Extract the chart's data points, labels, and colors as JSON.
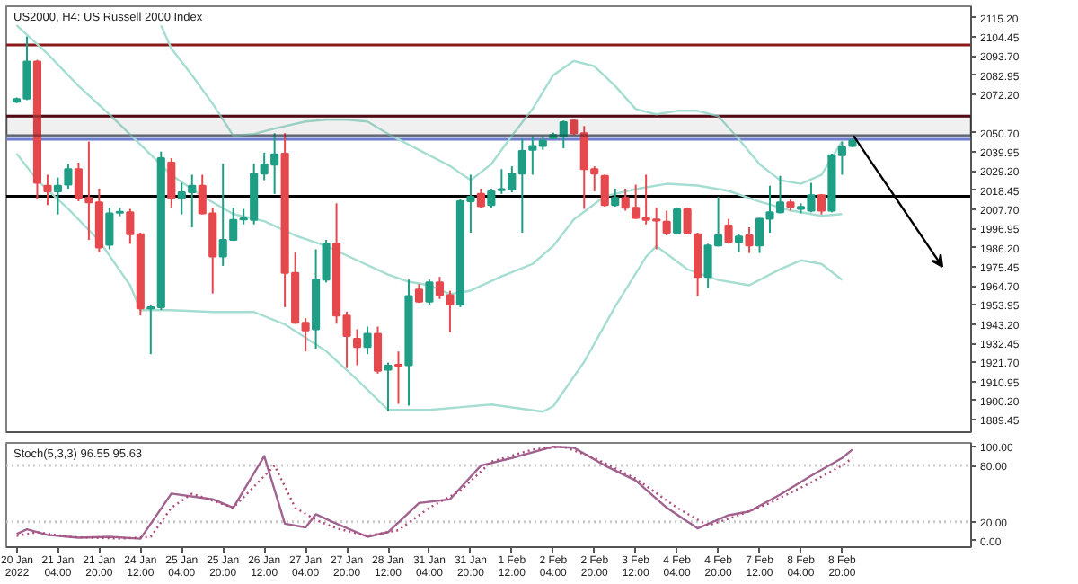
{
  "chart_data": [
    {
      "type": "candlestick",
      "title": "US2000, H4: US Russell 2000 Index",
      "categories": [
        null,
        null,
        null,
        null,
        null,
        null,
        null,
        null,
        null,
        null,
        null,
        null,
        null,
        null,
        null,
        null,
        null,
        null,
        null,
        null,
        null,
        null,
        null,
        null,
        null,
        null,
        null,
        null,
        null,
        null,
        null,
        null,
        null,
        null,
        null,
        null,
        null,
        null,
        null,
        null,
        null,
        null,
        null,
        null,
        null,
        null,
        null,
        null,
        null,
        null,
        null,
        null,
        null,
        null,
        null,
        null,
        null,
        null,
        null,
        null,
        null,
        null,
        null,
        null,
        null,
        null,
        null,
        null,
        null,
        null,
        null,
        null,
        null,
        null,
        null,
        null,
        null,
        null,
        null,
        null,
        null,
        null,
        null,
        null,
        null,
        null,
        null,
        null,
        null,
        null,
        null,
        null,
        null
      ],
      "ohlc": [
        [
          2068.1,
          2070.5,
          2067.4,
          2069.6
        ],
        [
          2069.9,
          2104.7,
          2069.0,
          2090.7
        ],
        [
          2090.7,
          2091.6,
          2013.2,
          2022.5
        ],
        [
          2020.9,
          2027.1,
          2010.0,
          2017.8
        ],
        [
          2017.8,
          2025.5,
          2004.8,
          2020.9
        ],
        [
          2021.5,
          2033.3,
          2019.3,
          2030.2
        ],
        [
          2030.2,
          2033.9,
          2012.2,
          2014.1
        ],
        [
          2014.1,
          2045.7,
          1990.5,
          2011.6
        ],
        [
          2011.6,
          2019.3,
          1983.7,
          1986.2
        ],
        [
          1987.7,
          2008.5,
          1985.2,
          2005.4
        ],
        [
          2005.7,
          2008.5,
          2003.8,
          2006.3
        ],
        [
          2006.0,
          2007.9,
          1988.3,
          1993.6
        ],
        [
          1993.6,
          1994.5,
          1948.0,
          1952.0
        ],
        [
          1952.0,
          1954.2,
          1926.3,
          1952.7
        ],
        [
          1952.7,
          2040.1,
          1951.1,
          2036.4
        ],
        [
          2033.9,
          2036.4,
          2008.5,
          2014.1
        ],
        [
          2014.1,
          2022.5,
          2004.8,
          2017.2
        ],
        [
          2017.2,
          2027.1,
          1997.6,
          2020.9
        ],
        [
          2020.9,
          2027.1,
          2004.8,
          2005.4
        ],
        [
          2005.4,
          2008.5,
          1960.4,
          1981.2
        ],
        [
          1981.2,
          2033.3,
          1975.9,
          1990.5
        ],
        [
          1990.5,
          2008.5,
          1989.9,
          2001.7
        ],
        [
          2002.0,
          2007.9,
          1999.2,
          2002.6
        ],
        [
          2001.7,
          2033.3,
          1999.2,
          2027.7
        ],
        [
          2027.7,
          2039.5,
          2024.0,
          2032.7
        ],
        [
          2032.7,
          2050.4,
          2016.3,
          2038.6
        ],
        [
          2038.9,
          2050.4,
          1952.7,
          1971.9
        ],
        [
          1971.9,
          1983.7,
          1943.4,
          1944.0
        ],
        [
          1944.0,
          1946.5,
          1927.8,
          1939.6
        ],
        [
          1940.3,
          1985.2,
          1929.4,
          1968.2
        ],
        [
          1968.2,
          1990.5,
          1966.6,
          1988.3
        ],
        [
          1988.3,
          2011.0,
          1943.4,
          1948.0
        ],
        [
          1948.0,
          1950.2,
          1918.5,
          1936.5
        ],
        [
          1935.0,
          1940.3,
          1920.1,
          1930.3
        ],
        [
          1930.3,
          1941.8,
          1926.3,
          1937.8
        ],
        [
          1937.8,
          1941.8,
          1915.4,
          1917.0
        ],
        [
          1917.6,
          1921.6,
          1894.3,
          1919.8
        ],
        [
          1920.4,
          1927.8,
          1898.4,
          1919.8
        ],
        [
          1920.1,
          1968.2,
          1897.4,
          1958.9
        ],
        [
          1962.6,
          1965.7,
          1955.1,
          1955.8
        ],
        [
          1955.8,
          1968.2,
          1954.2,
          1966.6
        ],
        [
          1966.6,
          1969.7,
          1957.3,
          1959.5
        ],
        [
          1959.5,
          1961.9,
          1938.7,
          1954.2
        ],
        [
          1954.2,
          2013.2,
          1952.7,
          2012.2
        ],
        [
          2012.2,
          2027.1,
          1994.5,
          2014.7
        ],
        [
          2016.3,
          2019.3,
          2008.5,
          2009.4
        ],
        [
          2010.0,
          2019.3,
          2008.5,
          2017.8
        ],
        [
          2018.4,
          2030.2,
          2016.3,
          2019.0
        ],
        [
          2018.7,
          2031.8,
          2017.2,
          2027.7
        ],
        [
          2027.7,
          2047.3,
          1994.5,
          2040.4
        ],
        [
          2041.1,
          2048.8,
          2027.1,
          2043.2
        ],
        [
          2043.2,
          2048.8,
          2041.1,
          2046.3
        ],
        [
          2047.6,
          2050.7,
          2047.0,
          2049.4
        ],
        [
          2048.8,
          2057.5,
          2042.0,
          2056.6
        ],
        [
          2057.5,
          2058.1,
          2049.4,
          2050.4
        ],
        [
          2050.4,
          2054.4,
          2007.9,
          2030.2
        ],
        [
          2030.2,
          2031.8,
          2017.8,
          2027.7
        ],
        [
          2026.5,
          2027.1,
          2009.1,
          2010.0
        ],
        [
          2010.0,
          2019.3,
          2009.1,
          2014.1
        ],
        [
          2014.1,
          2019.3,
          2006.9,
          2008.5
        ],
        [
          2008.5,
          2021.5,
          2002.3,
          2002.9
        ],
        [
          2002.9,
          2027.1,
          1999.2,
          2001.7
        ],
        [
          2002.0,
          2008.5,
          1985.2,
          2001.4
        ],
        [
          2000.7,
          2006.9,
          1993.0,
          1994.5
        ],
        [
          1994.5,
          2008.5,
          1993.6,
          2007.6
        ],
        [
          2007.6,
          2008.5,
          1993.6,
          1994.5
        ],
        [
          1993.6,
          1994.5,
          1958.9,
          1969.7
        ],
        [
          1969.7,
          1988.3,
          1963.5,
          1987.4
        ],
        [
          1987.4,
          2014.7,
          1986.8,
          1993.0
        ],
        [
          1998.6,
          2002.3,
          1988.3,
          1989.3
        ],
        [
          1989.3,
          1993.6,
          1983.7,
          1992.4
        ],
        [
          1993.0,
          1997.6,
          1983.1,
          1987.4
        ],
        [
          1987.4,
          2002.9,
          1983.1,
          2002.3
        ],
        [
          2002.3,
          2020.9,
          1994.5,
          2006.0
        ],
        [
          2006.0,
          2026.5,
          2005.4,
          2011.6
        ],
        [
          2011.6,
          2013.2,
          2006.9,
          2009.1
        ],
        [
          2007.9,
          2011.0,
          2005.4,
          2009.1
        ],
        [
          2006.9,
          2022.5,
          2006.0,
          2015.6
        ],
        [
          2015.6,
          2016.3,
          2004.8,
          2006.9
        ],
        [
          2006.9,
          2038.9,
          2006.0,
          2038.0
        ],
        [
          2038.0,
          2045.7,
          2027.1,
          2042.6
        ],
        [
          2043.2,
          2047.3,
          2042.6,
          2046.3
        ],
        null,
        null,
        null,
        null,
        null,
        null,
        null,
        null,
        null,
        null,
        null
      ],
      "colors": [
        "#1f9e86",
        "#1f9e86",
        "#e5484d",
        "#e5484d",
        "#1f9e86",
        "#1f9e86",
        "#e5484d",
        "#e5484d",
        "#e5484d",
        "#1f9e86",
        "#1f9e86",
        "#e5484d",
        "#e5484d",
        "#1f9e86",
        "#1f9e86",
        "#e5484d",
        "#1f9e86",
        "#1f9e86",
        "#e5484d",
        "#e5484d",
        "#1f9e86",
        "#1f9e86",
        "#1f9e86",
        "#1f9e86",
        "#1f9e86",
        "#1f9e86",
        "#e5484d",
        "#e5484d",
        "#e5484d",
        "#1f9e86",
        "#1f9e86",
        "#e5484d",
        "#e5484d",
        "#e5484d",
        "#1f9e86",
        "#e5484d",
        "#1f9e86",
        "#e5484d",
        "#1f9e86",
        "#e5484d",
        "#1f9e86",
        "#e5484d",
        "#e5484d",
        "#1f9e86",
        "#1f9e86",
        "#e5484d",
        "#1f9e86",
        "#1f9e86",
        "#1f9e86",
        "#1f9e86",
        "#1f9e86",
        "#1f9e86",
        "#1f9e86",
        "#1f9e86",
        "#e5484d",
        "#e5484d",
        "#e5484d",
        "#e5484d",
        "#1f9e86",
        "#e5484d",
        "#e5484d",
        "#e5484d",
        "#e5484d",
        "#e5484d",
        "#1f9e86",
        "#e5484d",
        "#e5484d",
        "#1f9e86",
        "#1f9e86",
        "#e5484d",
        "#1f9e86",
        "#e5484d",
        "#1f9e86",
        "#1f9e86",
        "#1f9e86",
        "#e5484d",
        "#1f9e86",
        "#1f9e86",
        "#e5484d",
        "#1f9e86",
        "#1f9e86",
        "#1f9e86",
        null,
        null,
        null,
        null,
        null,
        null,
        null,
        null,
        null,
        null,
        null
      ],
      "series": [
        {
          "type": "line",
          "color": "#a6ddd2",
          "values": [
            null,
            null,
            null,
            null,
            null,
            null,
            null,
            null,
            null,
            null,
            null,
            null,
            null,
            null,
            2111,
            2098,
            null,
            2083,
            null,
            2067,
            null,
            2049,
            null,
            2050,
            null,
            2053,
            null,
            null,
            2057,
            null,
            2058,
            null,
            2058,
            null,
            2057,
            null,
            2050,
            null,
            2044,
            null,
            2038,
            null,
            2032,
            null,
            2024,
            null,
            2033,
            null,
            2049,
            null,
            2064,
            null,
            2083,
            null,
            2091,
            null,
            2088,
            null,
            2077,
            null,
            2064,
            null,
            2061,
            null,
            2063,
            null,
            2063,
            null,
            2060,
            null,
            2047,
            null,
            2033,
            null,
            2024,
            null,
            2022,
            null,
            2027,
            null,
            2046,
            null,
            null,
            null,
            null,
            null,
            null,
            null,
            null,
            null,
            null,
            null,
            null
          ]
        },
        {
          "type": "line",
          "color": "#a6ddd2",
          "values": [
            2111,
            null,
            null,
            2095,
            null,
            null,
            2077,
            null,
            null,
            2061,
            null,
            null,
            2044,
            null,
            null,
            2027,
            null,
            null,
            2015,
            null,
            null,
            2005,
            null,
            null,
            2001,
            null,
            null,
            1993,
            null,
            null,
            1987,
            null,
            null,
            1979,
            null,
            null,
            1971,
            null,
            1967,
            null,
            1965,
            null,
            1960,
            null,
            1962,
            null,
            null,
            1970,
            null,
            null,
            1977,
            null,
            1987,
            null,
            2002,
            null,
            null,
            2015,
            null,
            null,
            2019,
            null,
            null,
            2022,
            null,
            null,
            2021,
            null,
            null,
            2018,
            null,
            null,
            2012,
            null,
            null,
            2007,
            null,
            null,
            2004,
            null,
            2005,
            null,
            null,
            null,
            null,
            null,
            null,
            null,
            null,
            null,
            null,
            null,
            null
          ]
        },
        {
          "type": "line",
          "color": "#a6ddd2",
          "values": [
            2039,
            null,
            2024,
            null,
            null,
            2008,
            null,
            null,
            1990,
            null,
            null,
            1965,
            1951,
            null,
            null,
            1951,
            null,
            null,
            null,
            1950,
            null,
            null,
            null,
            1950,
            null,
            null,
            1943,
            null,
            null,
            null,
            1928,
            null,
            null,
            1912,
            null,
            null,
            1895,
            null,
            null,
            null,
            1895,
            null,
            null,
            null,
            null,
            null,
            1898,
            null,
            null,
            null,
            null,
            1894,
            1897,
            null,
            null,
            1922,
            null,
            null,
            1953,
            null,
            null,
            1981,
            1987,
            null,
            null,
            1974,
            null,
            null,
            1968,
            null,
            null,
            1965,
            null,
            null,
            1974,
            null,
            1979,
            null,
            1977,
            null,
            1968,
            null,
            null,
            null,
            null,
            null,
            null,
            null,
            null,
            null,
            null,
            null,
            null
          ]
        }
      ],
      "ref_lines": [
        {
          "axis": "y",
          "value": 2100,
          "color": "#8b1a1a"
        },
        {
          "axis": "y",
          "value": 2060,
          "color": "#7a0f1f"
        },
        {
          "axis": "y",
          "value": 2049,
          "color": "#9aa0b0"
        },
        {
          "axis": "y",
          "value": 2047,
          "color": "#6f7fd0"
        },
        {
          "axis": "y",
          "value": 2015,
          "color": "#000000"
        }
      ],
      "bands": [
        {
          "axis": "y",
          "from": 2049,
          "to": 2060,
          "color": "#000000"
        }
      ],
      "ylim": [
        1882.5,
        2121.7
      ],
      "yticks": [
        {
          "value": 2115.2,
          "label": "2115.20"
        },
        {
          "value": 2104.45,
          "label": "2104.45"
        },
        {
          "value": 2093.7,
          "label": "2093.70"
        },
        {
          "value": 2082.95,
          "label": "2082.95"
        },
        {
          "value": 2072.2,
          "label": "2072.20"
        },
        {
          "value": 2050.7,
          "label": "2050.70"
        },
        {
          "value": 2039.95,
          "label": "2039.95"
        },
        {
          "value": 2029.2,
          "label": "2029.20"
        },
        {
          "value": 2018.45,
          "label": "2018.45"
        },
        {
          "value": 2007.7,
          "label": "2007.70"
        },
        {
          "value": 1996.95,
          "label": "1996.95"
        },
        {
          "value": 1986.2,
          "label": "1986.20"
        },
        {
          "value": 1975.45,
          "label": "1975.45"
        },
        {
          "value": 1964.7,
          "label": "1964.70"
        },
        {
          "value": 1953.95,
          "label": "1953.95"
        },
        {
          "value": 1943.2,
          "label": "1943.20"
        },
        {
          "value": 1932.45,
          "label": "1932.45"
        },
        {
          "value": 1921.7,
          "label": "1921.70"
        },
        {
          "value": 1910.95,
          "label": "1910.95"
        },
        {
          "value": 1900.2,
          "label": "1900.20"
        },
        {
          "value": 1889.45,
          "label": "1889.45"
        }
      ]
    },
    {
      "type": "line",
      "title": "Stoch(5,3,3) 96.55 95.63",
      "categories": [
        "20 Jan 2022",
        null,
        null,
        null,
        "21 Jan 04:00",
        null,
        null,
        null,
        "21 Jan 20:00",
        null,
        null,
        null,
        "24 Jan 12:00",
        null,
        null,
        null,
        "25 Jan 04:00",
        null,
        null,
        null,
        "25 Jan 20:00",
        null,
        null,
        null,
        "26 Jan 12:00",
        null,
        null,
        null,
        "27 Jan 04:00",
        null,
        null,
        null,
        "27 Jan 20:00",
        null,
        null,
        null,
        "28 Jan 12:00",
        null,
        null,
        null,
        "31 Jan 04:00",
        null,
        null,
        null,
        "31 Jan 20:00",
        null,
        null,
        null,
        "1 Feb 12:00",
        null,
        null,
        null,
        "2 Feb 04:00",
        null,
        null,
        null,
        "2 Feb 20:00",
        null,
        null,
        null,
        "3 Feb 12:00",
        null,
        null,
        null,
        "4 Feb 04:00",
        null,
        null,
        null,
        "4 Feb 20:00",
        null,
        null,
        null,
        "7 Feb 12:00",
        null,
        null,
        null,
        "8 Feb 04:00",
        null,
        null,
        null,
        "8 Feb 20:00",
        null,
        null,
        null,
        null,
        null,
        null,
        null,
        null,
        null,
        null,
        null,
        null
      ],
      "series": [
        {
          "color": "#a0628e",
          "line_style": "solid",
          "values": [
            7,
            12,
            null,
            6,
            null,
            null,
            3,
            null,
            null,
            4,
            null,
            null,
            2,
            null,
            null,
            50,
            null,
            null,
            null,
            44,
            null,
            35,
            null,
            null,
            90,
            null,
            18,
            null,
            14,
            28,
            null,
            18,
            null,
            null,
            4,
            null,
            9,
            null,
            null,
            40,
            null,
            null,
            44,
            null,
            null,
            80,
            null,
            null,
            88,
            null,
            null,
            null,
            100,
            null,
            99,
            null,
            null,
            80,
            null,
            null,
            64,
            null,
            null,
            35,
            null,
            null,
            13,
            null,
            null,
            27,
            null,
            31,
            null,
            null,
            49,
            null,
            null,
            69,
            null,
            null,
            88,
            97,
            null,
            null,
            null,
            null,
            null,
            null,
            null,
            null,
            null,
            null,
            null
          ]
        },
        {
          "color": "#b04a7a",
          "line_style": "dotted",
          "values": [
            5,
            null,
            9,
            null,
            null,
            4,
            null,
            null,
            null,
            null,
            2,
            null,
            null,
            4,
            null,
            35,
            null,
            50,
            null,
            null,
            null,
            35,
            null,
            null,
            null,
            80,
            null,
            35,
            null,
            22,
            null,
            13,
            null,
            null,
            5,
            null,
            null,
            11,
            null,
            null,
            35,
            null,
            null,
            53,
            null,
            null,
            84,
            null,
            null,
            null,
            97,
            null,
            null,
            100,
            null,
            null,
            88,
            null,
            null,
            null,
            66,
            null,
            null,
            null,
            35,
            null,
            null,
            16,
            null,
            null,
            27,
            null,
            null,
            40,
            null,
            null,
            null,
            62,
            null,
            null,
            80,
            88,
            null,
            null,
            null,
            null,
            null,
            null,
            null,
            null,
            null,
            null,
            null
          ]
        }
      ],
      "ref_lines": [
        {
          "axis": "y",
          "value": 80,
          "color": "#c8c8c8",
          "line_style": "dotted"
        },
        {
          "axis": "y",
          "value": 20,
          "color": "#c8c8c8",
          "line_style": "dotted"
        }
      ],
      "ylim": [
        -7,
        104
      ],
      "yticks": [
        {
          "value": 100,
          "label": "100.00"
        },
        {
          "value": 80,
          "label": "80.00"
        },
        {
          "value": 20,
          "label": "20.00"
        },
        {
          "value": 0,
          "label": "0.00"
        }
      ]
    }
  ]
}
